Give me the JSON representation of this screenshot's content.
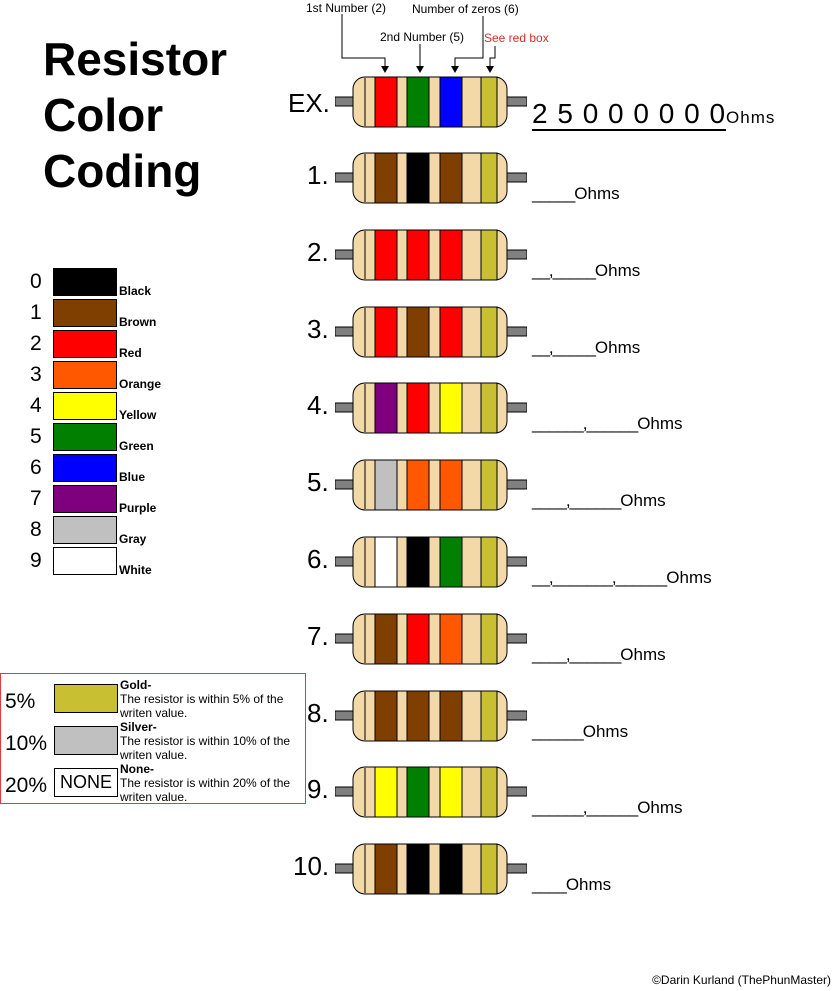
{
  "title": [
    "Resistor",
    "Color",
    "Coding"
  ],
  "top_labels": {
    "first_number": "1st Number (2)",
    "second_number": "2nd Number (5)",
    "number_of_zeros": "Number of zeros (6)",
    "see_red_box": "See red box"
  },
  "colors": {
    "black": "#000000",
    "brown": "#7f3f00",
    "red": "#ff0000",
    "orange": "#ff5800",
    "yellow": "#ffff00",
    "green": "#007f00",
    "blue": "#0000ff",
    "purple": "#7f007f",
    "gray": "#c0c0c0",
    "white": "#ffffff",
    "gold": "#c8c032",
    "body": "#f3d9a8",
    "lead": "#808080",
    "red_box_text": "#d42c2c"
  },
  "color_codes": [
    {
      "digit": "0",
      "name": "Black",
      "color": "#000000"
    },
    {
      "digit": "1",
      "name": "Brown",
      "color": "#7f3f00"
    },
    {
      "digit": "2",
      "name": "Red",
      "color": "#ff0000"
    },
    {
      "digit": "3",
      "name": "Orange",
      "color": "#ff5800"
    },
    {
      "digit": "4",
      "name": "Yellow",
      "color": "#ffff00"
    },
    {
      "digit": "5",
      "name": "Green",
      "color": "#007f00"
    },
    {
      "digit": "6",
      "name": "Blue",
      "color": "#0000ff"
    },
    {
      "digit": "7",
      "name": "Purple",
      "color": "#7f007f"
    },
    {
      "digit": "8",
      "name": "Gray",
      "color": "#c0c0c0"
    },
    {
      "digit": "9",
      "name": "White",
      "color": "#ffffff"
    }
  ],
  "tolerance": [
    {
      "percent": "5%",
      "swatch": "#c8c032",
      "swatch_text": "",
      "name": "Gold-",
      "desc": "The resistor is within 5% of the writen value."
    },
    {
      "percent": "10%",
      "swatch": "#c0c0c0",
      "swatch_text": "",
      "name": "Silver-",
      "desc": "The resistor is within 10% of the writen value."
    },
    {
      "percent": "20%",
      "swatch": "#ffffff",
      "swatch_text": "NONE",
      "name": "None-",
      "desc": "The resistor is within 20% of the writen value."
    }
  ],
  "example": {
    "label": "EX.",
    "bands": [
      "red",
      "green",
      "blue",
      "gold"
    ],
    "answer": "2 5 0 0 0 0 0 0",
    "unit": "Ohms"
  },
  "resistors": [
    {
      "label": "1.",
      "bands": [
        "brown",
        "black",
        "brown",
        "gold"
      ],
      "blank": "_____",
      "unit": "Ohms"
    },
    {
      "label": "2.",
      "bands": [
        "red",
        "red",
        "red",
        "gold"
      ],
      "blank": "__,_____",
      "unit": "Ohms"
    },
    {
      "label": "3.",
      "bands": [
        "red",
        "brown",
        "red",
        "gold"
      ],
      "blank": "__,_____",
      "unit": "Ohms"
    },
    {
      "label": "4.",
      "bands": [
        "purple",
        "red",
        "yellow",
        "gold"
      ],
      "blank": "______,______",
      "unit": "Ohms"
    },
    {
      "label": "5.",
      "bands": [
        "gray",
        "orange",
        "orange",
        "gold"
      ],
      "blank": "____,______",
      "unit": "Ohms"
    },
    {
      "label": "6.",
      "bands": [
        "white",
        "black",
        "green",
        "gold"
      ],
      "blank": "__,_______,______",
      "unit": "Ohms"
    },
    {
      "label": "7.",
      "bands": [
        "brown",
        "red",
        "orange",
        "gold"
      ],
      "blank": "____,______",
      "unit": "Ohms"
    },
    {
      "label": "8.",
      "bands": [
        "brown",
        "brown",
        "brown",
        "gold"
      ],
      "blank": "______",
      "unit": "Ohms"
    },
    {
      "label": "9.",
      "bands": [
        "yellow",
        "green",
        "yellow",
        "gold"
      ],
      "blank": "______,______",
      "unit": "Ohms"
    },
    {
      "label": "10.",
      "bands": [
        "brown",
        "black",
        "black",
        "gold"
      ],
      "blank": "____",
      "unit": "Ohms"
    }
  ],
  "footer": "©Darin Kurland (ThePhunMaster)"
}
